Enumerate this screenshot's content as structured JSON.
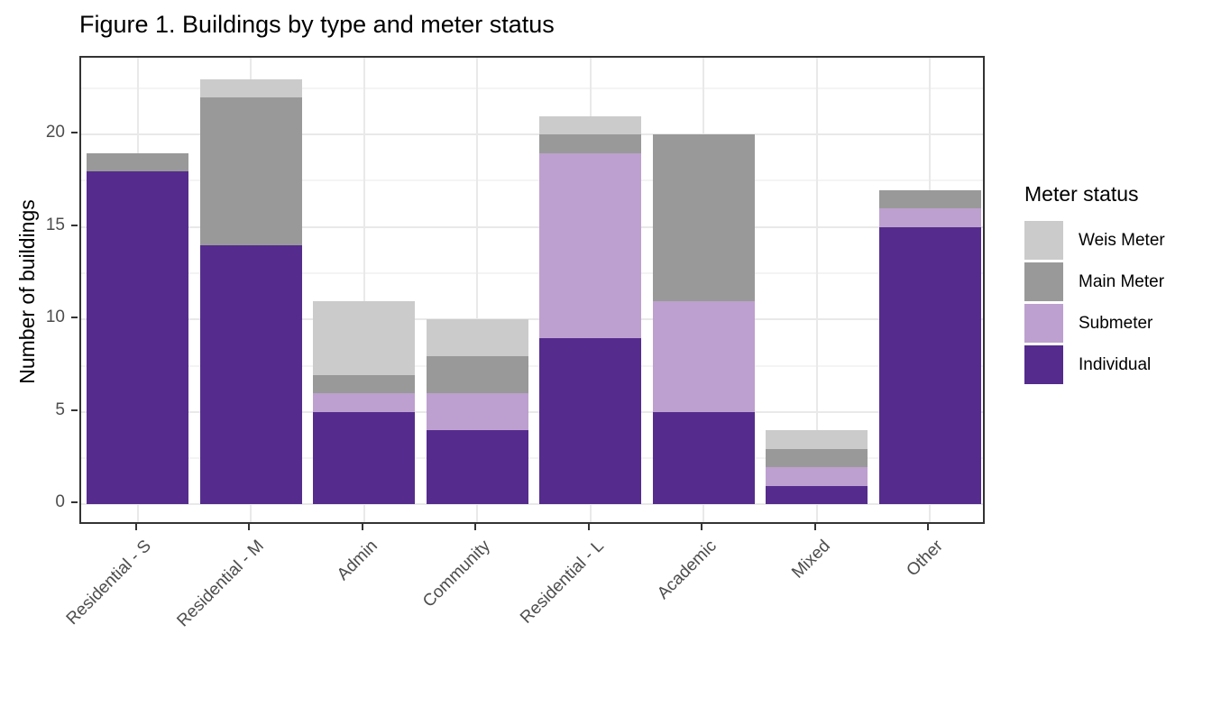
{
  "title": "Figure 1. Buildings by type and meter status",
  "chart_data": {
    "type": "bar",
    "stacked": true,
    "title": "Figure 1. Buildings by type and meter status",
    "xlabel": "",
    "ylabel": "Number of buildings",
    "categories": [
      "Residential - S",
      "Residential - M",
      "Admin",
      "Community",
      "Residential - L",
      "Academic",
      "Mixed",
      "Other"
    ],
    "series": [
      {
        "name": "Individual",
        "color": "#552c8d",
        "values": [
          18,
          14,
          5,
          4,
          9,
          5,
          1,
          15
        ]
      },
      {
        "name": "Submeter",
        "color": "#bda0cf",
        "values": [
          0,
          0,
          1,
          2,
          10,
          6,
          1,
          1
        ]
      },
      {
        "name": "Main Meter",
        "color": "#999999",
        "values": [
          1,
          8,
          1,
          2,
          1,
          9,
          1,
          1
        ]
      },
      {
        "name": "Weis Meter",
        "color": "#cbcbcb",
        "values": [
          0,
          1,
          4,
          2,
          1,
          0,
          1,
          0
        ]
      }
    ],
    "totals": [
      19,
      23,
      11,
      10,
      21,
      20,
      4,
      17
    ],
    "y_ticks": [
      0,
      5,
      10,
      15,
      20
    ],
    "y_minor_ticks": [
      2.5,
      7.5,
      12.5,
      17.5,
      22.5
    ],
    "ylim": [
      -1.15,
      24.15
    ],
    "grid": true,
    "legend": {
      "title": "Meter status",
      "position": "right",
      "entries": [
        {
          "label": "Weis Meter",
          "color": "#cbcbcb"
        },
        {
          "label": "Main Meter",
          "color": "#999999"
        },
        {
          "label": "Submeter",
          "color": "#bda0cf"
        },
        {
          "label": "Individual",
          "color": "#552c8d"
        }
      ]
    },
    "colors": {
      "panel_border": "#333333",
      "grid_major": "#e9e9e9",
      "grid_minor": "#f4f4f4",
      "axis_text": "#4d4d4d"
    }
  }
}
